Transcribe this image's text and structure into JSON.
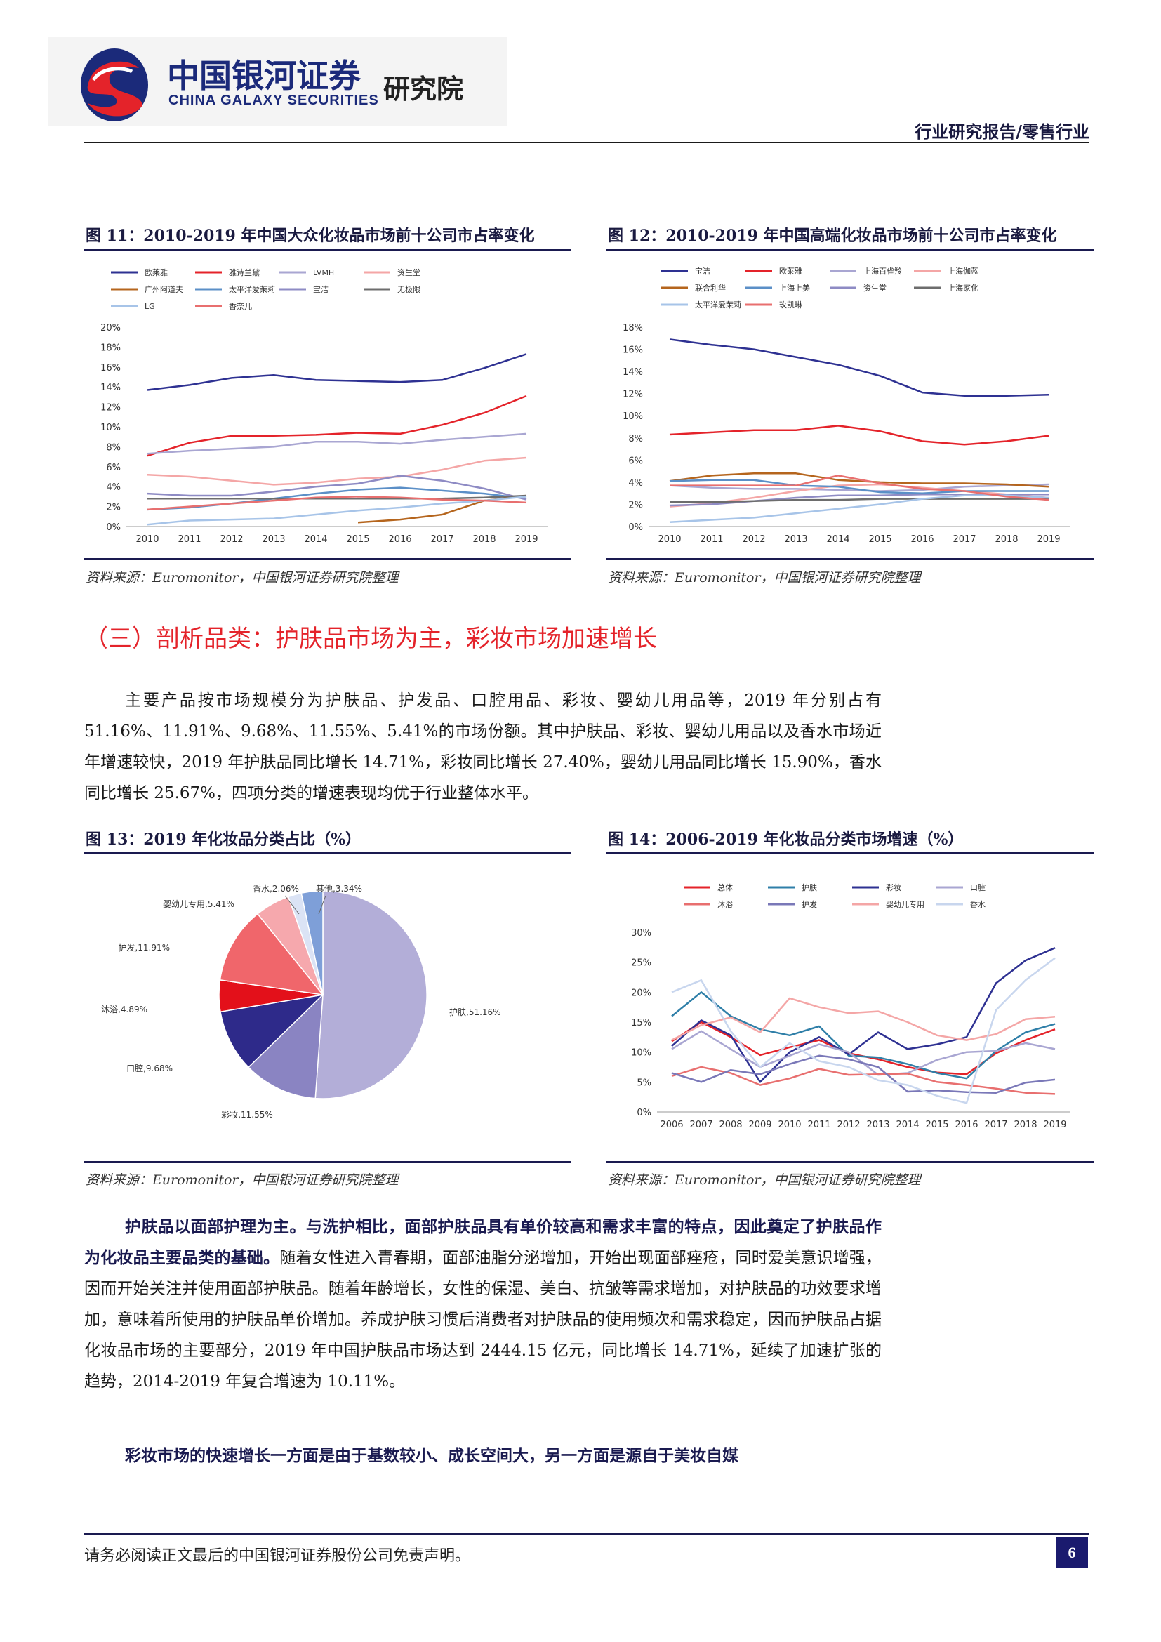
{
  "header": {
    "logo_cn": "中国银河证券",
    "logo_en": "CHINA GALAXY SECURITIES",
    "institute": "研究院",
    "report_type": "行业研究报告/零售行业"
  },
  "fig11": {
    "title": "图 11：2010-2019 年中国大众化妆品市场前十公司市占率变化",
    "source": "资料来源：Euromonitor，中国银河证券研究院整理",
    "legend": [
      {
        "name": "欧莱雅",
        "color": "#2e3192"
      },
      {
        "name": "雅诗兰黛",
        "color": "#e4232a"
      },
      {
        "name": "LVMH",
        "color": "#a9a6d2"
      },
      {
        "name": "资生堂",
        "color": "#f4a6a6"
      },
      {
        "name": "广州阿道夫",
        "color": "#b5651d"
      },
      {
        "name": "太平洋爱茉莉",
        "color": "#5b8fc7"
      },
      {
        "name": "宝洁",
        "color": "#8e8bc4"
      },
      {
        "name": "无极限",
        "color": "#6d6d6d"
      },
      {
        "name": "LG",
        "color": "#a7c4e8"
      },
      {
        "name": "香奈儿",
        "color": "#e86f6f"
      }
    ]
  },
  "fig12": {
    "title": "图 12：2010-2019 年中国高端化妆品市场前十公司市占率变化",
    "source": "资料来源：Euromonitor，中国银河证券研究院整理",
    "legend": [
      {
        "name": "宝洁",
        "color": "#2e3192"
      },
      {
        "name": "欧莱雅",
        "color": "#e4232a"
      },
      {
        "name": "上海百雀羚",
        "color": "#a9a6d2"
      },
      {
        "name": "上海伽蓝",
        "color": "#f4a6a6"
      },
      {
        "name": "联合利华",
        "color": "#b5651d"
      },
      {
        "name": "上海上美",
        "color": "#5b8fc7"
      },
      {
        "name": "资生堂",
        "color": "#8e8bc4"
      },
      {
        "name": "上海家化",
        "color": "#6d6d6d"
      },
      {
        "name": "太平洋爱茉莉",
        "color": "#a7c4e8"
      },
      {
        "name": "玫凯琳",
        "color": "#e86f6f"
      }
    ]
  },
  "section": {
    "heading": "（三）剖析品类：护肤品市场为主，彩妆市场加速增长",
    "para1": "主要产品按市场规模分为护肤品、护发品、口腔用品、彩妆、婴幼儿用品等，2019 年分别占有 51.16%、11.91%、9.68%、11.55%、5.41%的市场份额。其中护肤品、彩妆、婴幼儿用品以及香水市场近年增速较快，2019 年护肤品同比增长 14.71%，彩妆同比增长 27.40%，婴幼儿用品同比增长 15.90%，香水同比增长 25.67%，四项分类的增速表现均优于行业整体水平。"
  },
  "fig13": {
    "title": "图 13：2019 年化妆品分类占比（%）",
    "source": "资料来源：Euromonitor，中国银河证券研究院整理"
  },
  "fig14": {
    "title": "图 14：2006-2019 年化妆品分类市场增速（%）",
    "source": "资料来源：Euromonitor，中国银河证券研究院整理",
    "legend": [
      {
        "name": "总体",
        "color": "#e4232a"
      },
      {
        "name": "护肤",
        "color": "#2f7fa8"
      },
      {
        "name": "彩妆",
        "color": "#2e3192"
      },
      {
        "name": "口腔",
        "color": "#a9a6d2"
      },
      {
        "name": "沐浴",
        "color": "#e86f6f"
      },
      {
        "name": "护发",
        "color": "#7a78b8"
      },
      {
        "name": "婴幼儿专用",
        "color": "#f4a6a6"
      },
      {
        "name": "香水",
        "color": "#c8d6ee"
      }
    ]
  },
  "para2_bold": "护肤品以面部护理为主。与洗护相比，面部护肤品具有单价较高和需求丰富的特点，因此奠定了护肤品作为化妆品主要品类的基础。",
  "para2_rest": "随着女性进入青春期，面部油脂分泌增加，开始出现面部痤疮，同时爱美意识增强，因而开始关注并使用面部护肤品。随着年龄增长，女性的保湿、美白、抗皱等需求增加，对护肤品的功效要求增加，意味着所使用的护肤品单价增加。养成护肤习惯后消费者对护肤品的使用频次和需求稳定，因而护肤品占据化妆品市场的主要部分，2019 年中国护肤品市场达到 2444.15 亿元，同比增长 14.71%，延续了加速扩张的趋势，2014-2019 年复合增速为 10.11%。",
  "para3_bold": "彩妆市场的快速增长一方面是由于基数较小、成长空间大，另一方面是源自于美妆自媒",
  "footer": {
    "disclaimer": "请务必阅读正文最后的中国银河证券股份公司免责声明。",
    "page_number": "6"
  },
  "chart_data": [
    {
      "type": "line",
      "title": "",
      "x": [
        2010,
        2011,
        2012,
        2013,
        2014,
        2015,
        2016,
        2017,
        2018,
        2019
      ],
      "ylim": [
        0,
        20
      ],
      "yticks": [
        "0%",
        "2%",
        "4%",
        "6%",
        "8%",
        "10%",
        "12%",
        "14%",
        "16%",
        "18%",
        "20%"
      ],
      "series": [
        {
          "name": "欧莱雅",
          "color": "#2e3192",
          "values": [
            13.7,
            14.2,
            14.9,
            15.2,
            14.7,
            14.6,
            14.5,
            14.7,
            15.9,
            17.3
          ]
        },
        {
          "name": "雅诗兰黛",
          "color": "#e4232a",
          "values": [
            7.1,
            8.4,
            9.1,
            9.1,
            9.2,
            9.4,
            9.3,
            10.2,
            11.4,
            13.1
          ]
        },
        {
          "name": "LVMH",
          "color": "#a9a6d2",
          "values": [
            7.3,
            7.6,
            7.8,
            8.0,
            8.5,
            8.5,
            8.3,
            8.7,
            9.0,
            9.3
          ]
        },
        {
          "name": "资生堂",
          "color": "#f4a6a6",
          "values": [
            5.2,
            5.0,
            4.6,
            4.2,
            4.4,
            4.8,
            5.0,
            5.7,
            6.6,
            6.9
          ]
        },
        {
          "name": "广州阿道夫",
          "color": "#b5651d",
          "values": [
            null,
            null,
            null,
            null,
            null,
            0.4,
            0.7,
            1.2,
            2.6,
            3.1
          ]
        },
        {
          "name": "太平洋爱茉莉",
          "color": "#5b8fc7",
          "values": [
            1.7,
            1.9,
            2.3,
            2.8,
            3.3,
            3.7,
            3.9,
            3.6,
            3.3,
            2.8
          ]
        },
        {
          "name": "宝洁",
          "color": "#8e8bc4",
          "values": [
            3.3,
            3.1,
            3.1,
            3.5,
            4.0,
            4.3,
            5.1,
            4.6,
            3.8,
            2.7
          ]
        },
        {
          "name": "无极限",
          "color": "#6d6d6d",
          "values": [
            2.8,
            2.8,
            2.8,
            2.8,
            2.8,
            2.8,
            2.8,
            2.8,
            2.9,
            3.1
          ]
        },
        {
          "name": "LG",
          "color": "#a7c4e8",
          "values": [
            0.2,
            0.6,
            0.7,
            0.8,
            1.2,
            1.6,
            1.9,
            2.3,
            2.6,
            3.0
          ]
        },
        {
          "name": "香奈儿",
          "color": "#e86f6f",
          "values": [
            1.7,
            2.0,
            2.3,
            2.6,
            2.9,
            3.0,
            2.9,
            2.7,
            2.6,
            2.4
          ]
        }
      ]
    },
    {
      "type": "line",
      "title": "",
      "x": [
        2010,
        2011,
        2012,
        2013,
        2014,
        2015,
        2016,
        2017,
        2018,
        2019
      ],
      "ylim": [
        0,
        18
      ],
      "yticks": [
        "0%",
        "2%",
        "4%",
        "6%",
        "8%",
        "10%",
        "12%",
        "14%",
        "16%",
        "18%"
      ],
      "series": [
        {
          "name": "宝洁",
          "color": "#2e3192",
          "values": [
            16.9,
            16.4,
            16.0,
            15.3,
            14.6,
            13.6,
            12.1,
            11.8,
            11.8,
            11.9
          ]
        },
        {
          "name": "欧莱雅",
          "color": "#e4232a",
          "values": [
            8.3,
            8.5,
            8.7,
            8.7,
            9.1,
            8.6,
            7.7,
            7.4,
            7.7,
            8.2
          ]
        },
        {
          "name": "上海百雀羚",
          "color": "#a9a6d2",
          "values": [
            3.7,
            3.5,
            3.4,
            3.4,
            3.3,
            3.2,
            3.3,
            3.6,
            3.7,
            3.8
          ]
        },
        {
          "name": "上海伽蓝",
          "color": "#f4a6a6",
          "values": [
            1.8,
            2.1,
            2.6,
            3.2,
            3.7,
            3.8,
            3.5,
            3.2,
            2.9,
            2.6
          ]
        },
        {
          "name": "联合利华",
          "color": "#b5651d",
          "values": [
            4.1,
            4.6,
            4.8,
            4.8,
            4.2,
            4.0,
            3.9,
            3.9,
            3.8,
            3.6
          ]
        },
        {
          "name": "上海上美",
          "color": "#5b8fc7",
          "values": [
            4.1,
            4.2,
            4.2,
            3.7,
            3.6,
            3.1,
            3.0,
            3.2,
            3.2,
            3.2
          ]
        },
        {
          "name": "资生堂",
          "color": "#8e8bc4",
          "values": [
            1.9,
            2.0,
            2.3,
            2.6,
            2.8,
            2.8,
            2.9,
            2.9,
            2.9,
            2.9
          ]
        },
        {
          "name": "上海家化",
          "color": "#6d6d6d",
          "values": [
            2.2,
            2.2,
            2.3,
            2.4,
            2.4,
            2.5,
            2.5,
            2.5,
            2.5,
            2.5
          ]
        },
        {
          "name": "太平洋爱茉莉",
          "color": "#a7c4e8",
          "values": [
            0.4,
            0.6,
            0.8,
            1.2,
            1.6,
            2.0,
            2.5,
            2.8,
            2.8,
            2.6
          ]
        },
        {
          "name": "玫凯琳",
          "color": "#e86f6f",
          "values": [
            3.7,
            3.7,
            3.7,
            3.7,
            4.6,
            3.9,
            3.4,
            3.2,
            2.7,
            2.4
          ]
        }
      ]
    },
    {
      "type": "pie",
      "title": "",
      "slices": [
        {
          "label": "护肤,51.16%",
          "value": 51.16,
          "color": "#b3aed8"
        },
        {
          "label": "彩妆,11.55%",
          "value": 11.55,
          "color": "#8a84c2"
        },
        {
          "label": "口腔,9.68%",
          "value": 9.68,
          "color": "#2e2a8a"
        },
        {
          "label": "沐浴,4.89%",
          "value": 4.89,
          "color": "#e3101a"
        },
        {
          "label": "护发,11.91%",
          "value": 11.91,
          "color": "#f0666b"
        },
        {
          "label": "婴幼儿专用,5.41%",
          "value": 5.41,
          "color": "#f6a8ad"
        },
        {
          "label": "香水,2.06%",
          "value": 2.06,
          "color": "#dbe3f5"
        },
        {
          "label": "其他,3.34%",
          "value": 3.34,
          "color": "#7e9fd8"
        }
      ]
    },
    {
      "type": "line",
      "title": "",
      "x": [
        2006,
        2007,
        2008,
        2009,
        2010,
        2011,
        2012,
        2013,
        2014,
        2015,
        2016,
        2017,
        2018,
        2019
      ],
      "ylim": [
        0,
        30
      ],
      "yticks": [
        "0%",
        "5%",
        "10%",
        "15%",
        "20%",
        "25%",
        "30%"
      ],
      "series": [
        {
          "name": "总体",
          "color": "#e4232a",
          "values": [
            11.8,
            15.0,
            12.5,
            9.5,
            10.8,
            12.0,
            9.8,
            8.8,
            7.5,
            6.6,
            6.3,
            9.8,
            12.0,
            13.8
          ]
        },
        {
          "name": "护肤",
          "color": "#2f7fa8",
          "values": [
            16.0,
            20.0,
            16.0,
            13.8,
            12.8,
            14.3,
            9.4,
            9.1,
            8.0,
            6.5,
            5.6,
            10.2,
            13.3,
            14.7
          ]
        },
        {
          "name": "彩妆",
          "color": "#2e3192",
          "values": [
            11.0,
            15.3,
            12.8,
            5.0,
            10.0,
            12.5,
            9.6,
            13.3,
            10.5,
            11.3,
            12.5,
            21.5,
            25.3,
            27.4
          ]
        },
        {
          "name": "口腔",
          "color": "#a9a6d2",
          "values": [
            10.5,
            13.5,
            10.5,
            7.5,
            9.4,
            11.3,
            10.0,
            6.2,
            6.5,
            8.7,
            10.0,
            10.2,
            11.5,
            10.5
          ]
        },
        {
          "name": "沐浴",
          "color": "#e86f6f",
          "values": [
            6.0,
            7.5,
            6.5,
            4.5,
            5.6,
            7.2,
            6.2,
            6.3,
            6.4,
            5.0,
            4.5,
            3.9,
            3.2,
            3.0
          ]
        },
        {
          "name": "护发",
          "color": "#7a78b8",
          "values": [
            6.5,
            5.0,
            7.0,
            6.3,
            8.0,
            9.4,
            8.8,
            7.5,
            3.4,
            3.6,
            3.3,
            3.2,
            4.9,
            5.4
          ]
        },
        {
          "name": "婴幼儿专用",
          "color": "#f4a6a6",
          "values": [
            12.0,
            14.5,
            15.8,
            13.3,
            19.0,
            17.5,
            16.5,
            16.8,
            15.0,
            12.8,
            12.0,
            13.0,
            15.5,
            15.9
          ]
        },
        {
          "name": "香水",
          "color": "#c8d6ee",
          "values": [
            20.0,
            22.0,
            13.5,
            7.5,
            11.5,
            8.5,
            7.5,
            5.3,
            4.5,
            2.7,
            1.5,
            17.0,
            22.0,
            25.7
          ]
        }
      ]
    }
  ]
}
